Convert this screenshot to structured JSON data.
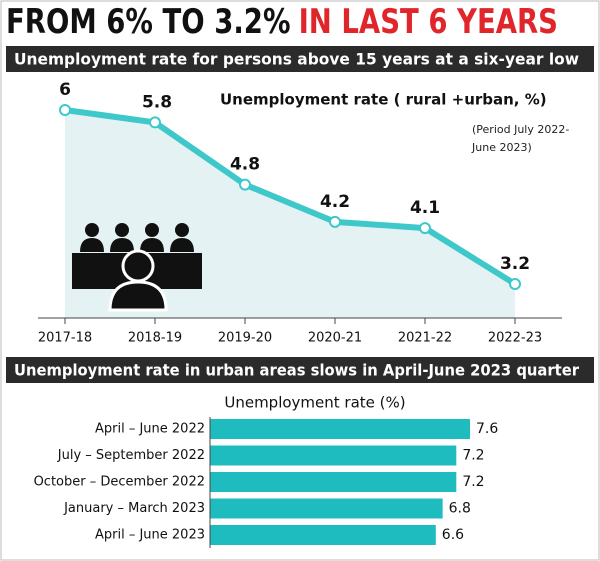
{
  "header": {
    "title": [
      "FROM 6% TO 3.2%",
      "IN LAST 6 YEARS"
    ]
  },
  "chart_data": [
    {
      "type": "line",
      "title": "Unemployment rate for persons above 15 years at a six-year low",
      "subtitle": "Unemployment rate ( rural +urban, %)",
      "note": [
        "(Period July 2022-",
        "June 2023)"
      ],
      "categories": [
        "2017-18",
        "2018-19",
        "2019-20",
        "2020-21",
        "2021-22",
        "2022-23"
      ],
      "values": [
        6,
        5.8,
        4.8,
        4.2,
        4.1,
        3.2
      ],
      "color": "#3ec8ca",
      "area_color": "#e4f2f3"
    },
    {
      "type": "hbar",
      "title": "Unemployment rate in urban areas slows in April-June 2023 quarter",
      "subtitle": "Unemployment rate (%)",
      "categories": [
        "April – June 2022",
        "July – September 2022",
        "October – December 2022",
        "January – March 2023",
        "April – June 2023"
      ],
      "values": [
        7.6,
        7.2,
        7.2,
        6.8,
        6.6
      ],
      "color": "#1fbcbf"
    }
  ]
}
